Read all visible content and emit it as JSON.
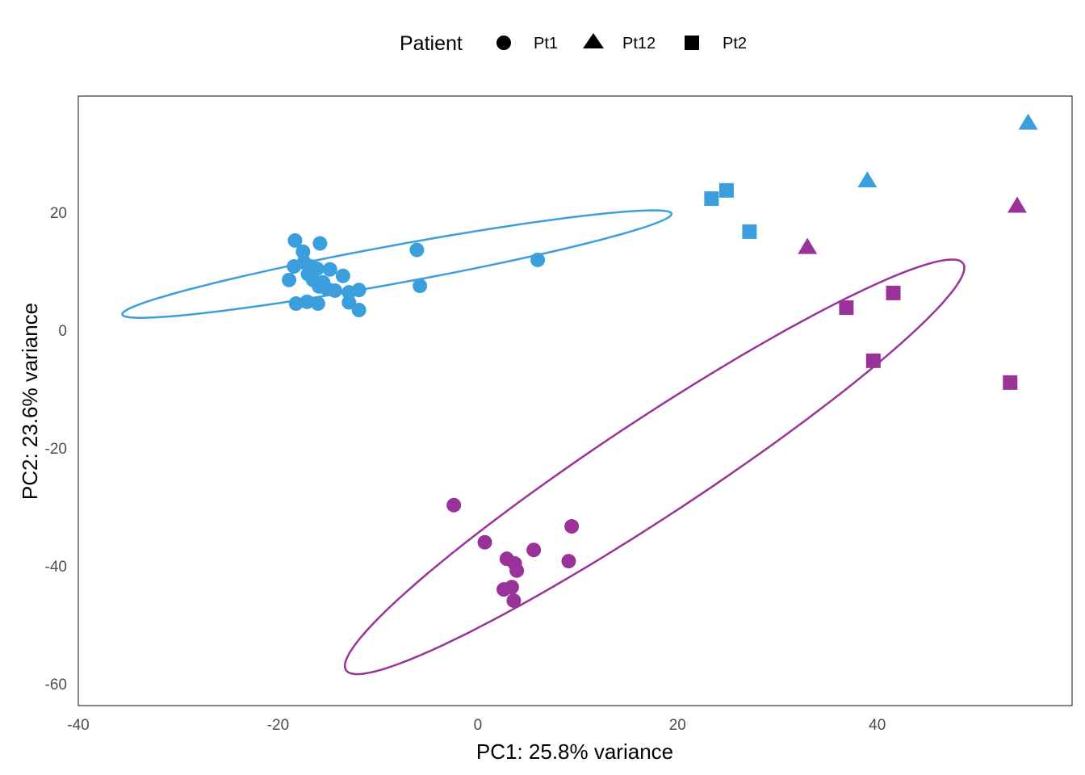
{
  "chart_data": {
    "type": "scatter",
    "xlabel": "PC1: 25.8% variance",
    "ylabel": "PC2: 23.6% variance",
    "xlim": [
      -40,
      59.5
    ],
    "ylim": [
      -63.7,
      39.7
    ],
    "xticks": [
      -40,
      -20,
      0,
      20,
      40
    ],
    "yticks": [
      -60,
      -40,
      -20,
      0,
      20
    ],
    "grid": false,
    "legend": {
      "title": "Patient",
      "placement": "top",
      "entries": [
        {
          "label": "Pt1",
          "shape": "circle"
        },
        {
          "label": "Pt12",
          "shape": "triangle"
        },
        {
          "label": "Pt2",
          "shape": "square"
        }
      ]
    },
    "colors": {
      "blue": "#3a9fdc",
      "purple": "#993399"
    },
    "series": [
      {
        "name": "blue",
        "color": "#3a9fdc",
        "points": [
          {
            "x": -18.3,
            "y": 15.2,
            "p": "Pt1"
          },
          {
            "x": -15.8,
            "y": 14.7,
            "p": "Pt1"
          },
          {
            "x": -17.5,
            "y": 13.3,
            "p": "Pt1"
          },
          {
            "x": -18.4,
            "y": 10.8,
            "p": "Pt1"
          },
          {
            "x": -17.4,
            "y": 11.5,
            "p": "Pt1"
          },
          {
            "x": -16.1,
            "y": 10.4,
            "p": "Pt1"
          },
          {
            "x": -14.8,
            "y": 10.3,
            "p": "Pt1"
          },
          {
            "x": -13.5,
            "y": 9.2,
            "p": "Pt1"
          },
          {
            "x": -18.9,
            "y": 8.5,
            "p": "Pt1"
          },
          {
            "x": -17.0,
            "y": 9.5,
            "p": "Pt1"
          },
          {
            "x": -16.5,
            "y": 8.5,
            "p": "Pt1"
          },
          {
            "x": -15.9,
            "y": 7.4,
            "p": "Pt1"
          },
          {
            "x": -15.1,
            "y": 7.0,
            "p": "Pt1"
          },
          {
            "x": -14.3,
            "y": 6.7,
            "p": "Pt1"
          },
          {
            "x": -12.9,
            "y": 6.4,
            "p": "Pt1"
          },
          {
            "x": -11.9,
            "y": 6.8,
            "p": "Pt1"
          },
          {
            "x": -18.2,
            "y": 4.5,
            "p": "Pt1"
          },
          {
            "x": -17.1,
            "y": 4.8,
            "p": "Pt1"
          },
          {
            "x": -16.0,
            "y": 4.5,
            "p": "Pt1"
          },
          {
            "x": -12.9,
            "y": 4.7,
            "p": "Pt1"
          },
          {
            "x": -11.9,
            "y": 3.4,
            "p": "Pt1"
          },
          {
            "x": -6.1,
            "y": 13.6,
            "p": "Pt1"
          },
          {
            "x": -5.8,
            "y": 7.5,
            "p": "Pt1"
          },
          {
            "x": 6.0,
            "y": 11.9,
            "p": "Pt1"
          },
          {
            "x": -16.7,
            "y": 10.8,
            "p": "Pt1"
          },
          {
            "x": -15.5,
            "y": 8.1,
            "p": "Pt1"
          },
          {
            "x": 23.4,
            "y": 22.3,
            "p": "Pt2"
          },
          {
            "x": 24.9,
            "y": 23.7,
            "p": "Pt2"
          },
          {
            "x": 27.2,
            "y": 16.7,
            "p": "Pt2"
          },
          {
            "x": 39.0,
            "y": 25.3,
            "p": "Pt12"
          },
          {
            "x": 55.1,
            "y": 35.1,
            "p": "Pt12"
          }
        ]
      },
      {
        "name": "purple",
        "color": "#993399",
        "points": [
          {
            "x": -2.4,
            "y": -29.7,
            "p": "Pt1"
          },
          {
            "x": 0.7,
            "y": -36.0,
            "p": "Pt1"
          },
          {
            "x": 5.6,
            "y": -37.3,
            "p": "Pt1"
          },
          {
            "x": 9.4,
            "y": -33.3,
            "p": "Pt1"
          },
          {
            "x": 9.1,
            "y": -39.2,
            "p": "Pt1"
          },
          {
            "x": 2.9,
            "y": -38.8,
            "p": "Pt1"
          },
          {
            "x": 3.7,
            "y": -39.6,
            "p": "Pt1"
          },
          {
            "x": 3.9,
            "y": -40.8,
            "p": "Pt1"
          },
          {
            "x": 2.6,
            "y": -44.0,
            "p": "Pt1"
          },
          {
            "x": 3.4,
            "y": -43.6,
            "p": "Pt1"
          },
          {
            "x": 3.6,
            "y": -45.9,
            "p": "Pt1"
          },
          {
            "x": 36.9,
            "y": 3.8,
            "p": "Pt2"
          },
          {
            "x": 41.6,
            "y": 6.3,
            "p": "Pt2"
          },
          {
            "x": 39.6,
            "y": -5.2,
            "p": "Pt2"
          },
          {
            "x": 53.3,
            "y": -8.9,
            "p": "Pt2"
          },
          {
            "x": 33.0,
            "y": 14.0,
            "p": "Pt12"
          },
          {
            "x": 54.0,
            "y": 21.0,
            "p": "Pt12"
          }
        ]
      }
    ],
    "ellipses": [
      {
        "color": "#3a9fdc",
        "center": [
          -8.1,
          11.2
        ],
        "u": [
          27.5,
          8.55
        ],
        "v": [
          0.343,
          -3.17
        ]
      },
      {
        "color": "#993399",
        "center": [
          17.7,
          -23.2
        ],
        "u": [
          30.9,
          34.5
        ],
        "v": [
          2.67,
          -6.86
        ]
      }
    ]
  }
}
